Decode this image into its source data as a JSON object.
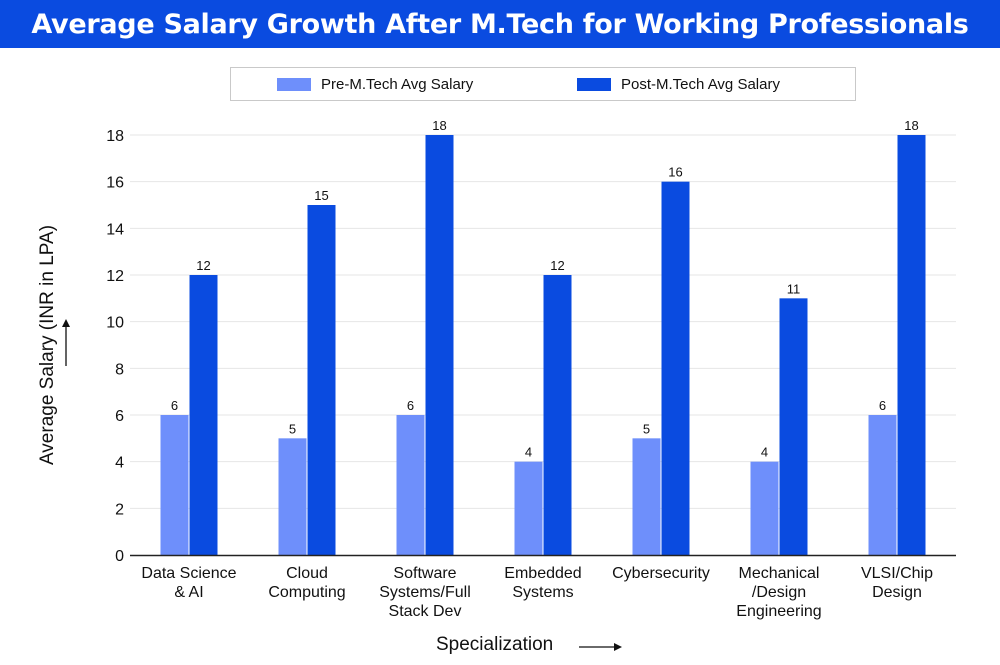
{
  "chart_data": {
    "type": "bar",
    "title": "Average Salary Growth After M.Tech for Working Professionals",
    "xlabel": "Specialization",
    "ylabel": "Average Salary (INR in LPA)",
    "ylim": [
      0,
      18
    ],
    "yticks": [
      "0",
      "2",
      "4",
      "6",
      "8",
      "10",
      "12",
      "14",
      "16",
      "18"
    ],
    "legend_position": "top",
    "categories": [
      [
        "Data Science",
        "& AI"
      ],
      [
        "Cloud",
        "Computing"
      ],
      [
        "Software",
        "Systems/Full",
        "Stack Dev"
      ],
      [
        "Embedded",
        "Systems"
      ],
      [
        "Cybersecurity"
      ],
      [
        "Mechanical",
        "/Design",
        "Engineering"
      ],
      [
        "VLSI/Chip",
        "Design"
      ]
    ],
    "series": [
      {
        "name": "Pre-M.Tech Avg Salary",
        "color": "#6e8ffb",
        "values": [
          6,
          5,
          6,
          4,
          5,
          4,
          6
        ]
      },
      {
        "name": "Post-M.Tech Avg Salary",
        "color": "#0a4be0",
        "values": [
          12,
          15,
          18,
          12,
          16,
          11,
          18
        ]
      }
    ]
  }
}
